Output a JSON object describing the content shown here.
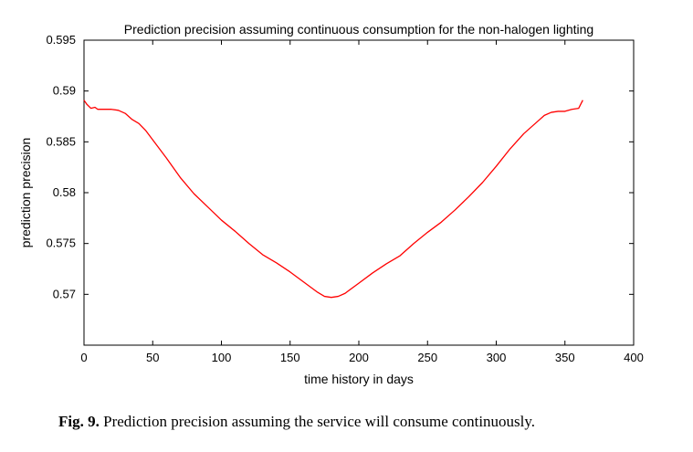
{
  "chart_data": {
    "type": "line",
    "title": "Prediction precision assuming continuous consumption for the non-halogen lighting",
    "xlabel": "time history in days",
    "ylabel": "prediction precision",
    "xlim": [
      0,
      400
    ],
    "ylim": [
      0.565,
      0.595
    ],
    "x_ticks": [
      0,
      50,
      100,
      150,
      200,
      250,
      300,
      350,
      400
    ],
    "x_tick_labels": [
      "0",
      "50",
      "100",
      "150",
      "200",
      "250",
      "300",
      "350",
      "400"
    ],
    "y_ticks": [
      0.57,
      0.575,
      0.58,
      0.585,
      0.59,
      0.595
    ],
    "y_tick_labels": [
      "0.57",
      "0.575",
      "0.58",
      "0.585",
      "0.59",
      "0.595"
    ],
    "grid": false,
    "series": [
      {
        "color": "#ff0000",
        "x": [
          0,
          2,
          5,
          8,
          10,
          15,
          20,
          25,
          30,
          35,
          40,
          45,
          50,
          55,
          60,
          70,
          80,
          90,
          100,
          110,
          120,
          130,
          140,
          150,
          160,
          170,
          175,
          180,
          185,
          190,
          200,
          210,
          220,
          230,
          240,
          250,
          260,
          270,
          280,
          290,
          300,
          310,
          320,
          330,
          335,
          340,
          345,
          350,
          355,
          360,
          363
        ],
        "y": [
          0.5891,
          0.5887,
          0.5883,
          0.5884,
          0.5882,
          0.5882,
          0.5882,
          0.5881,
          0.5878,
          0.5872,
          0.5868,
          0.5861,
          0.5852,
          0.5843,
          0.5834,
          0.5815,
          0.5799,
          0.5786,
          0.5773,
          0.5762,
          0.575,
          0.5739,
          0.5731,
          0.5722,
          0.5712,
          0.5702,
          0.5698,
          0.5697,
          0.5698,
          0.5701,
          0.5711,
          0.5721,
          0.573,
          0.5738,
          0.575,
          0.5761,
          0.5771,
          0.5783,
          0.5796,
          0.581,
          0.5826,
          0.5843,
          0.5858,
          0.587,
          0.5876,
          0.5879,
          0.588,
          0.588,
          0.5882,
          0.5883,
          0.5891
        ]
      }
    ]
  },
  "caption": {
    "label": "Fig. 9.",
    "text": "Prediction precision assuming the service will consume continuously."
  }
}
